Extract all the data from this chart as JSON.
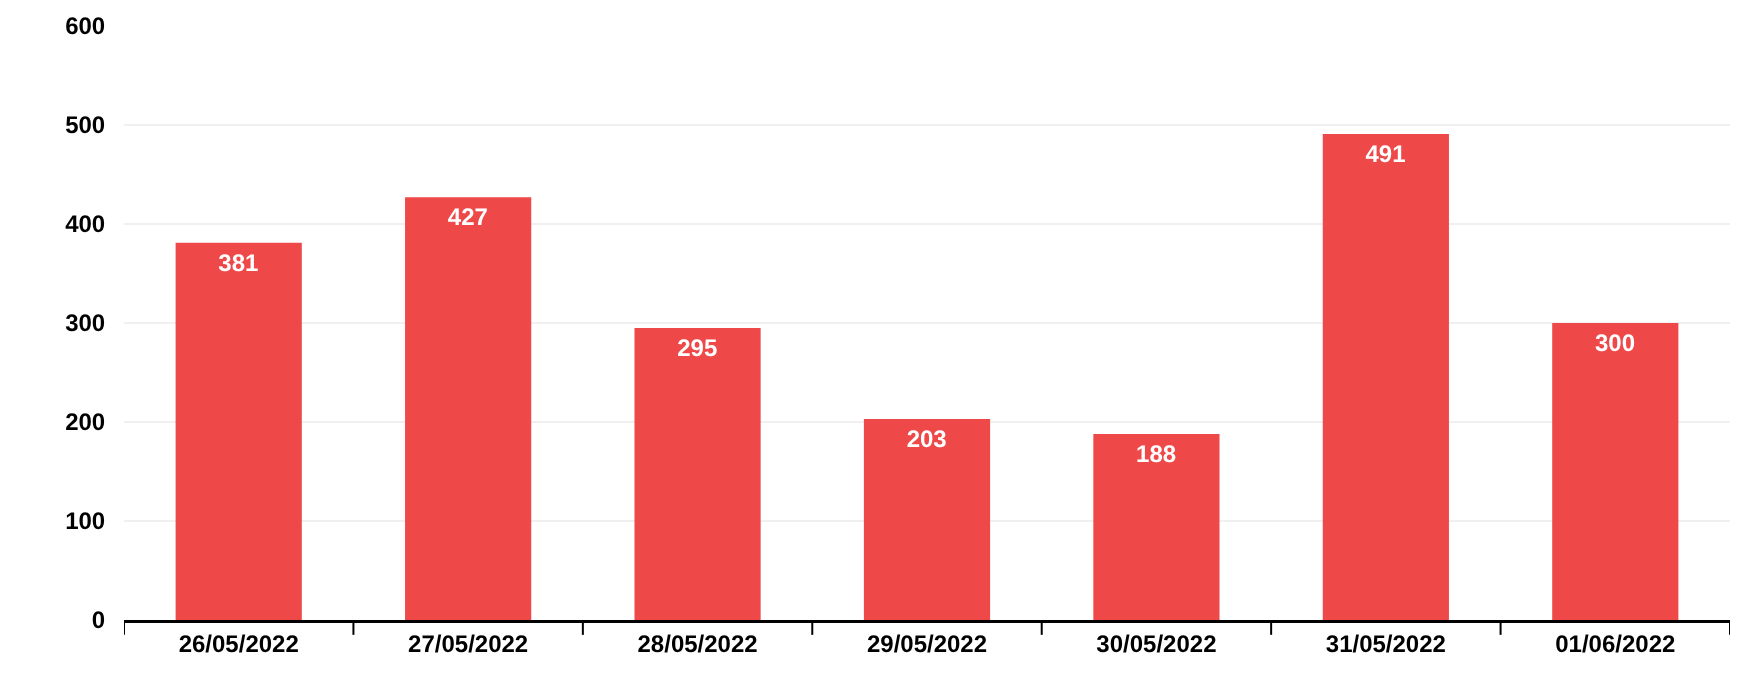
{
  "chart_data": {
    "type": "bar",
    "categories": [
      "26/05/2022",
      "27/05/2022",
      "28/05/2022",
      "29/05/2022",
      "30/05/2022",
      "31/05/2022",
      "01/06/2022"
    ],
    "values": [
      381,
      427,
      295,
      203,
      188,
      491,
      300
    ],
    "color": "#ee4848",
    "ylim": [
      0,
      600
    ],
    "yticks": [
      0,
      100,
      200,
      300,
      400,
      500,
      600
    ],
    "grid": "y",
    "data_labels": true
  }
}
